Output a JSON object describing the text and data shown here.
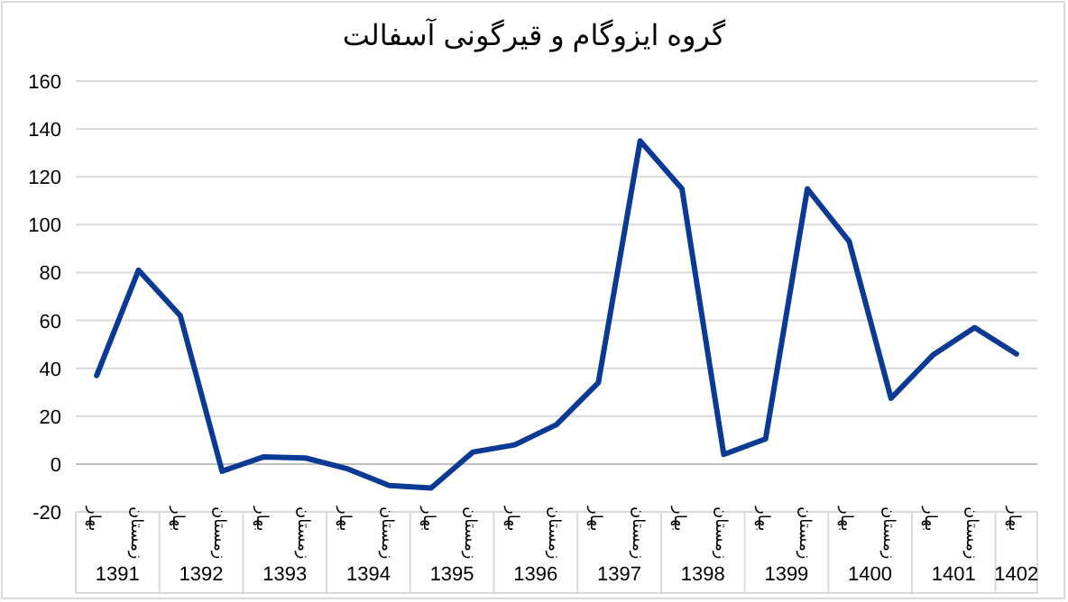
{
  "chart_data": {
    "type": "line",
    "title": "گروه ایزوگام و قیرگونی آسفالت",
    "categories": [
      "بهار",
      "زمستان",
      "بهار",
      "زمستان",
      "بهار",
      "زمستان",
      "بهار",
      "زمستان",
      "بهار",
      "زمستان",
      "بهار",
      "زمستان",
      "بهار",
      "زمستان",
      "بهار",
      "زمستان",
      "بهار",
      "زمستان",
      "بهار",
      "زمستان",
      "بهار",
      "زمستان",
      "بهار"
    ],
    "series": [
      {
        "color": "#0b3a94",
        "values": [
          37,
          81,
          62,
          -3,
          3,
          2.5,
          -2,
          -9,
          -10,
          5,
          8,
          16.5,
          34,
          135,
          115,
          4,
          10.5,
          115,
          93,
          27.5,
          45.5,
          57,
          46
        ]
      }
    ],
    "annotations": [
      "1391",
      "1392",
      "1393",
      "1394",
      "1395",
      "1396",
      "1397",
      "1398",
      "1399",
      "1400",
      "1401",
      "1402"
    ],
    "ylim": [
      -20,
      160
    ],
    "yticks": [
      -20,
      0,
      20,
      40,
      60,
      80,
      100,
      120,
      140,
      160
    ],
    "grid": "y"
  }
}
